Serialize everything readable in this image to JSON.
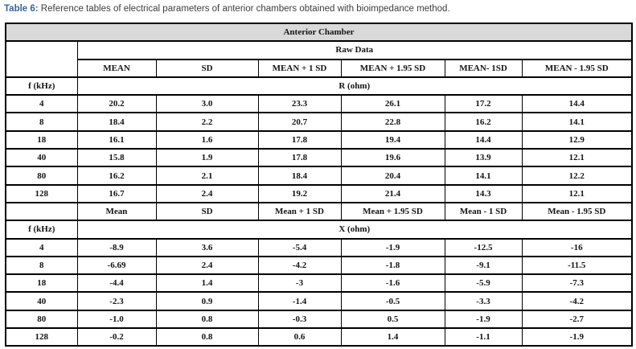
{
  "caption": {
    "label": "Table 6:",
    "text": " Reference tables of electrical parameters of anterior chambers obtained with bioimpedance method."
  },
  "colors": {
    "caption_accent": "#35639f",
    "caption_text": "#3d3d3d",
    "header_background": "#d9d9d9",
    "table_border": "#000000",
    "cell_text": "#141414"
  },
  "table": {
    "header": "Anterior Chamber",
    "subheader": "Raw Data",
    "sections": [
      {
        "columns": [
          "MEAN",
          "SD",
          "MEAN + 1 SD",
          "MEAN + 1.95 SD",
          "MEAN- 1SD",
          "MEAN - 1.95 SD"
        ],
        "freq_label": "f (kHz)",
        "param": "R (ohm)",
        "rows": [
          {
            "f": "4",
            "values": [
              "20.2",
              "3.0",
              "23.3",
              "26.1",
              "17.2",
              "14.4"
            ]
          },
          {
            "f": "8",
            "values": [
              "18.4",
              "2.2",
              "20.7",
              "22.8",
              "16.2",
              "14.1"
            ]
          },
          {
            "f": "18",
            "values": [
              "16.1",
              "1.6",
              "17.8",
              "19.4",
              "14.4",
              "12.9"
            ]
          },
          {
            "f": "40",
            "values": [
              "15.8",
              "1.9",
              "17.8",
              "19.6",
              "13.9",
              "12.1"
            ]
          },
          {
            "f": "80",
            "values": [
              "16.2",
              "2.1",
              "18.4",
              "20.4",
              "14.1",
              "12.2"
            ]
          },
          {
            "f": "128",
            "values": [
              "16.7",
              "2.4",
              "19.2",
              "21.4",
              "14.3",
              "12.1"
            ]
          }
        ]
      },
      {
        "columns": [
          "Mean",
          "SD",
          "Mean + 1 SD",
          "Mean + 1.95 SD",
          "Mean - 1 SD",
          "Mean - 1.95 SD"
        ],
        "freq_label": "f (kHz)",
        "param": "X (ohm)",
        "rows": [
          {
            "f": "4",
            "values": [
              "-8.9",
              "3.6",
              "-5.4",
              "-1.9",
              "-12.5",
              "-16"
            ]
          },
          {
            "f": "8",
            "values": [
              "-6.69",
              "2.4",
              "-4.2",
              "-1.8",
              "-9.1",
              "-11.5"
            ]
          },
          {
            "f": "18",
            "values": [
              "-4.4",
              "1.4",
              "-3",
              "-1.6",
              "-5.9",
              "-7.3"
            ]
          },
          {
            "f": "40",
            "values": [
              "-2.3",
              "0.9",
              "-1.4",
              "-0.5",
              "-3.3",
              "-4.2"
            ]
          },
          {
            "f": "80",
            "values": [
              "-1.0",
              "0.8",
              "-0.3",
              "0.5",
              "-1.9",
              "-2.7"
            ]
          },
          {
            "f": "128",
            "values": [
              "-0.2",
              "0.8",
              "0.6",
              "1.4",
              "-1.1",
              "-1.9"
            ]
          }
        ]
      }
    ]
  }
}
